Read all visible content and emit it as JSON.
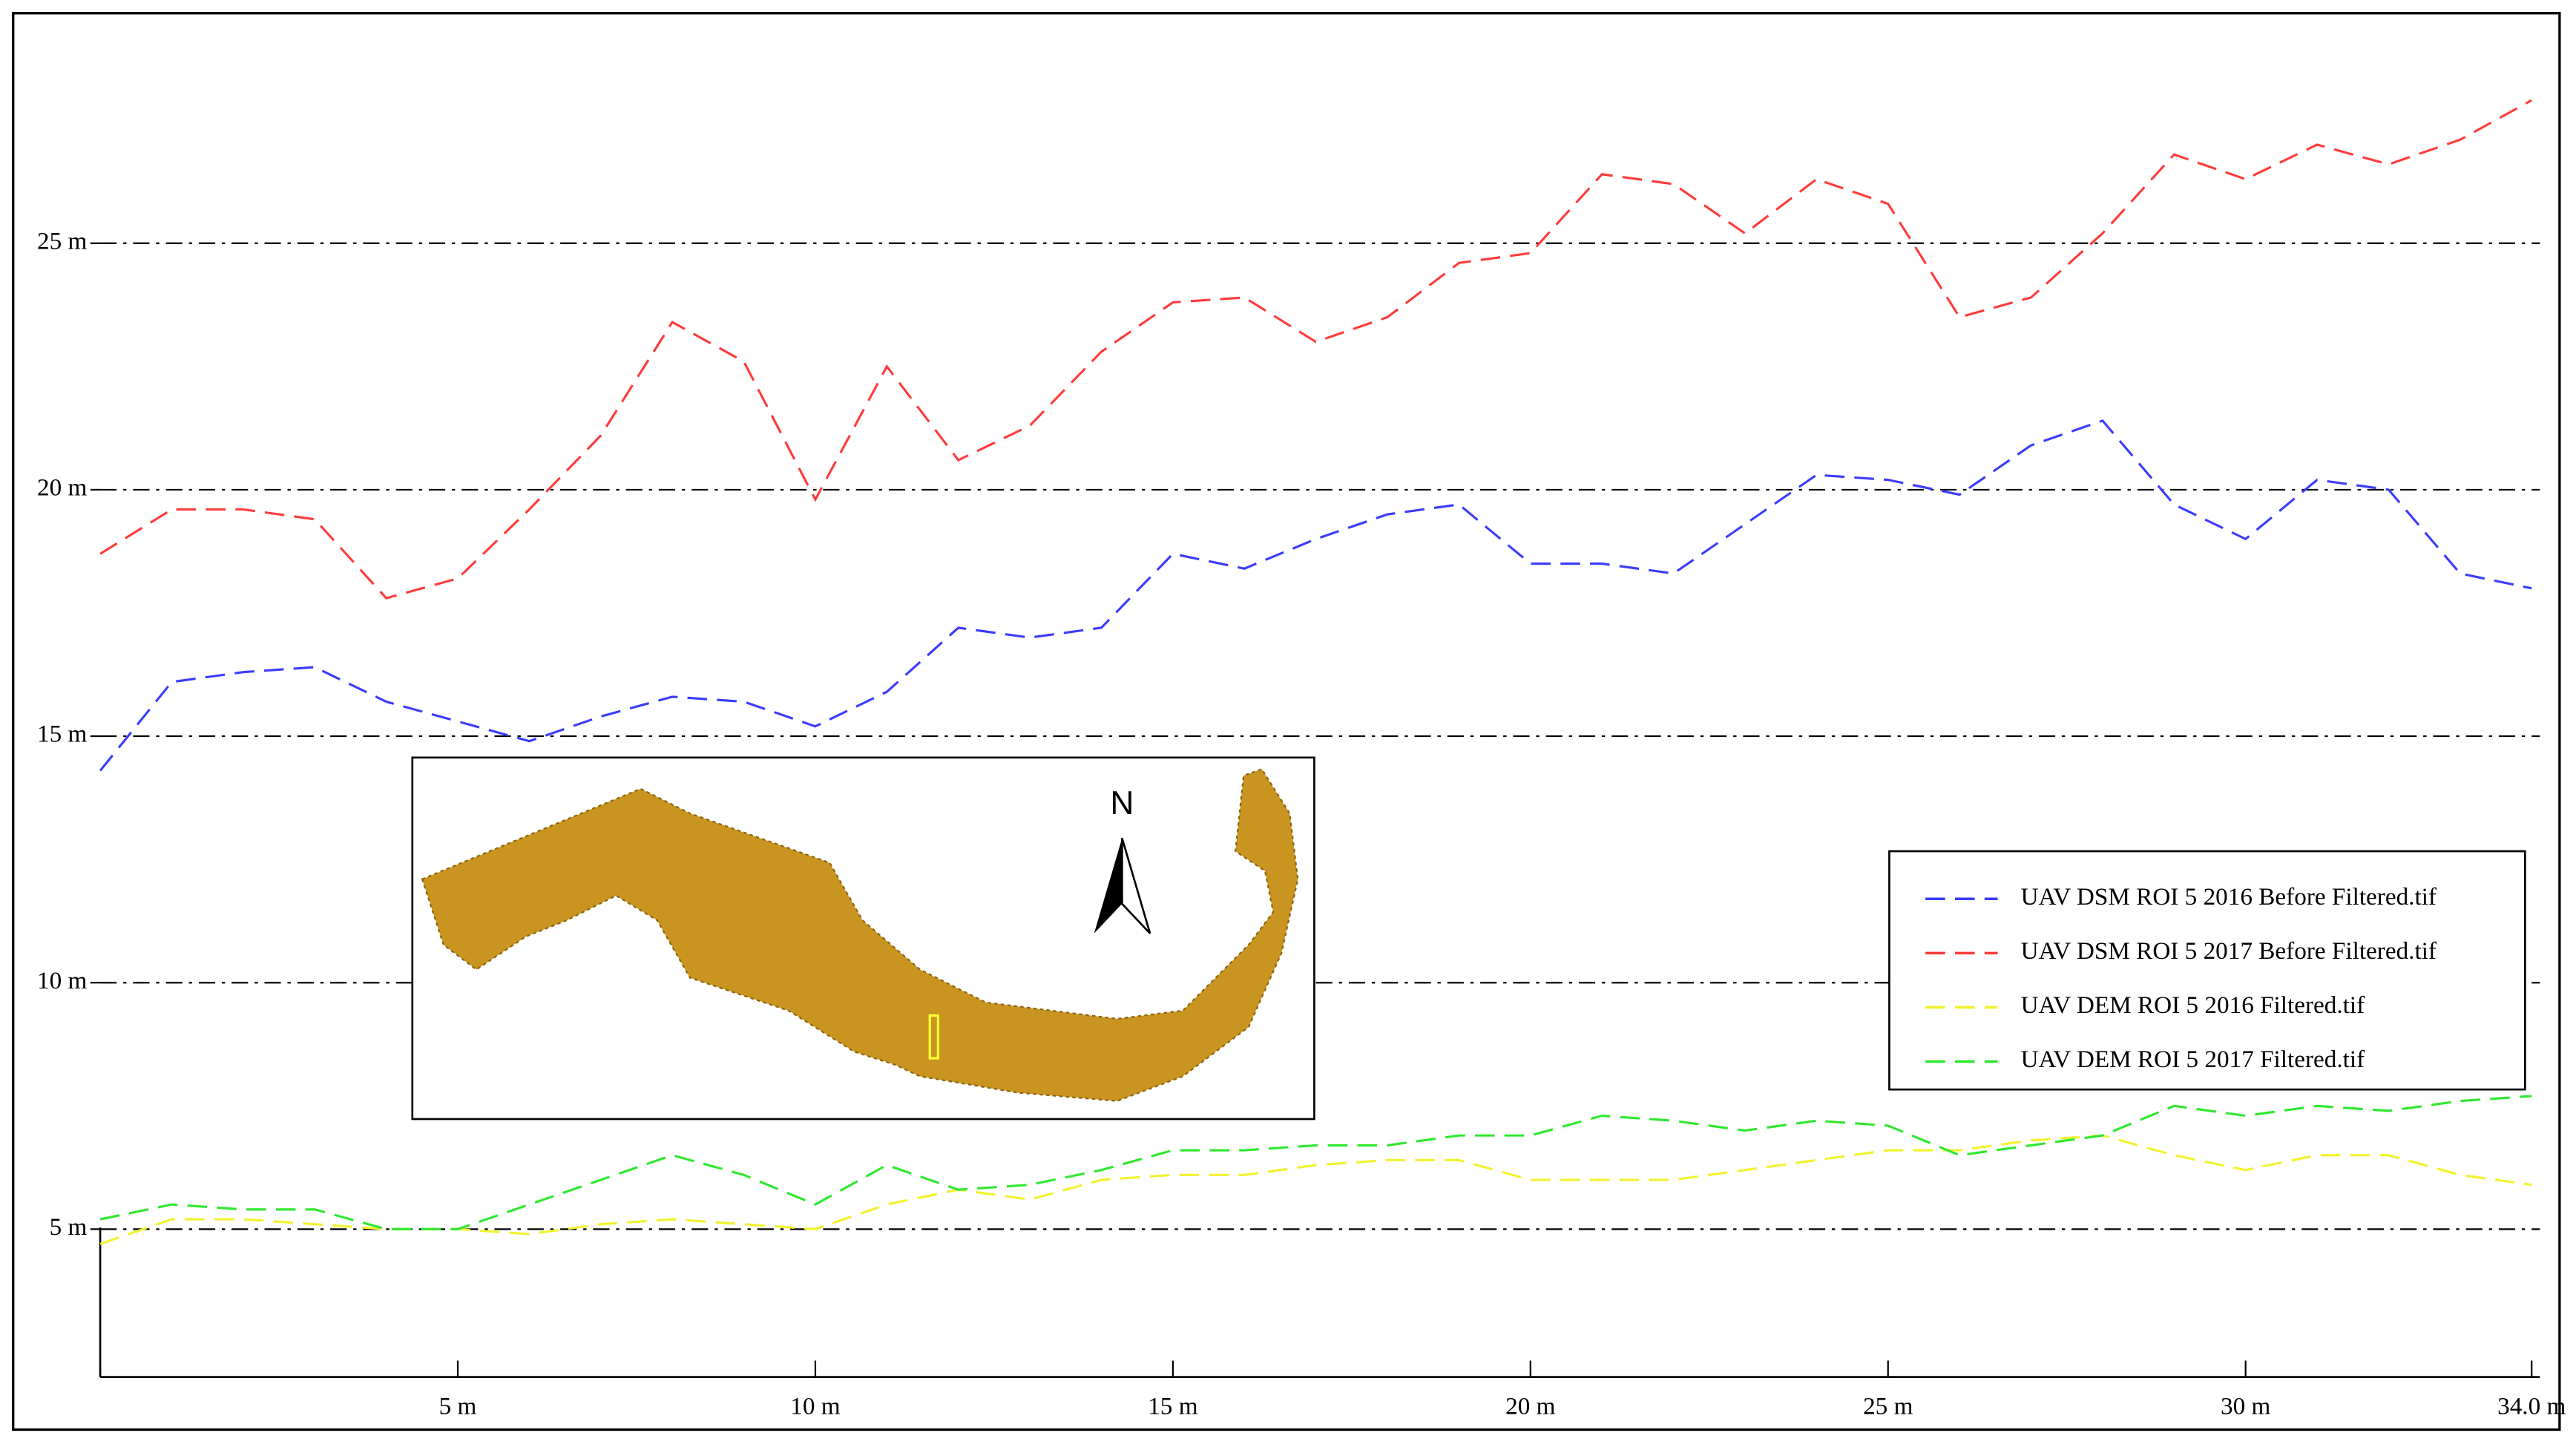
{
  "chart_data": {
    "type": "line",
    "x": [
      0,
      1,
      2,
      3,
      4,
      5,
      6,
      7,
      8,
      9,
      10,
      11,
      12,
      13,
      14,
      15,
      16,
      17,
      18,
      19,
      20,
      21,
      22,
      23,
      24,
      25,
      26,
      27,
      28,
      29,
      30,
      31,
      32,
      33,
      34
    ],
    "series": [
      {
        "name": "UAV DSM ROI 5 2016 Before Filtered.tif",
        "color": "#3b3bff",
        "values": [
          14.3,
          16.1,
          16.3,
          16.4,
          15.7,
          15.3,
          14.9,
          15.4,
          15.8,
          15.7,
          15.2,
          15.9,
          17.2,
          17.0,
          17.2,
          18.7,
          18.4,
          19.0,
          19.5,
          19.7,
          18.5,
          18.5,
          18.3,
          19.3,
          20.3,
          20.2,
          19.9,
          20.9,
          21.4,
          19.7,
          19.0,
          20.2,
          20.0,
          18.3,
          18.0
        ]
      },
      {
        "name": "UAV DSM ROI 5 2017 Before Filtered.tif",
        "color": "#ff3b3b",
        "values": [
          18.7,
          19.6,
          19.6,
          19.4,
          17.8,
          18.2,
          19.6,
          21.1,
          23.4,
          22.6,
          19.8,
          22.5,
          20.6,
          21.3,
          22.8,
          23.8,
          23.9,
          23.0,
          23.5,
          24.6,
          24.8,
          26.4,
          26.2,
          25.2,
          26.3,
          25.8,
          23.5,
          23.9,
          25.2,
          26.8,
          26.3,
          27.0,
          26.6,
          27.1,
          27.9
        ]
      },
      {
        "name": "UAV DEM ROI 5 2016 Filtered.tif",
        "color": "#f2f22e",
        "values": [
          4.7,
          5.2,
          5.2,
          5.1,
          5.0,
          5.0,
          4.9,
          5.1,
          5.2,
          5.1,
          5.0,
          5.5,
          5.8,
          5.6,
          6.0,
          6.1,
          6.1,
          6.3,
          6.4,
          6.4,
          6.0,
          6.0,
          6.0,
          6.2,
          6.4,
          6.6,
          6.6,
          6.8,
          6.9,
          6.5,
          6.2,
          6.5,
          6.5,
          6.1,
          5.9
        ]
      },
      {
        "name": "UAV DEM ROI 5 2017 Filtered.tif",
        "color": "#2ee82e",
        "values": [
          5.2,
          5.5,
          5.4,
          5.4,
          5.0,
          5.0,
          5.5,
          6.0,
          6.5,
          6.1,
          5.5,
          6.3,
          5.8,
          5.9,
          6.2,
          6.6,
          6.6,
          6.7,
          6.7,
          6.9,
          6.9,
          7.3,
          7.2,
          7.0,
          7.2,
          7.1,
          6.5,
          6.7,
          6.9,
          7.5,
          7.3,
          7.5,
          7.4,
          7.6,
          7.7
        ]
      }
    ],
    "xlim": [
      0,
      34
    ],
    "ylim": [
      2,
      29.2
    ],
    "xticks": [
      {
        "value": 5,
        "label": "5 m"
      },
      {
        "value": 10,
        "label": "10 m"
      },
      {
        "value": 15,
        "label": "15 m"
      },
      {
        "value": 20,
        "label": "20 m"
      },
      {
        "value": 25,
        "label": "25 m"
      },
      {
        "value": 30,
        "label": "30 m"
      },
      {
        "value": 34,
        "label": "34.0 m"
      }
    ],
    "yticks": [
      {
        "value": 5,
        "label": "5 m"
      },
      {
        "value": 10,
        "label": "10 m"
      },
      {
        "value": 15,
        "label": "15 m"
      },
      {
        "value": 20,
        "label": "20 m"
      },
      {
        "value": 25,
        "label": "25 m"
      }
    ],
    "grid": true,
    "legend": "right",
    "inset_north_label": "N"
  }
}
